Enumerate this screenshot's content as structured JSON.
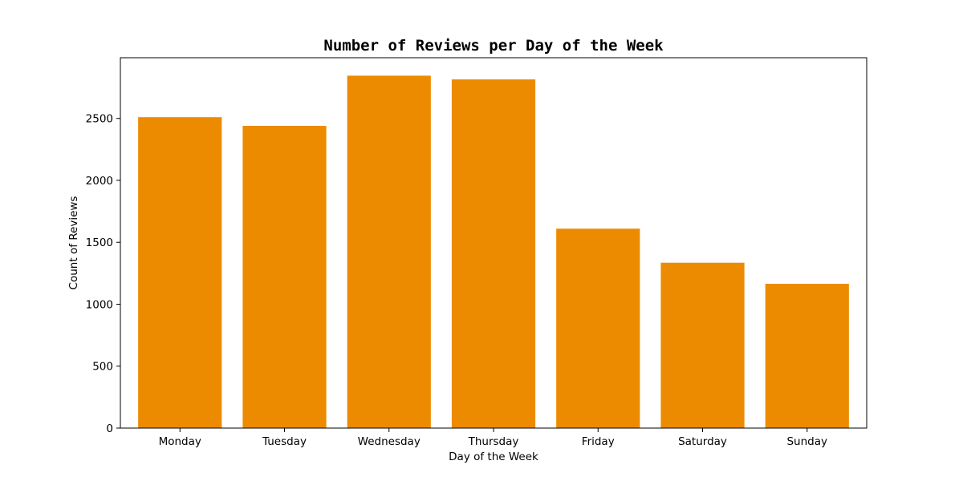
{
  "chart_data": {
    "type": "bar",
    "title": "Number of Reviews per Day of the Week",
    "xlabel": "Day of the Week",
    "ylabel": "Count of Reviews",
    "categories": [
      "Monday",
      "Tuesday",
      "Wednesday",
      "Thursday",
      "Friday",
      "Saturday",
      "Sunday"
    ],
    "values": [
      2510,
      2440,
      2845,
      2815,
      1610,
      1335,
      1165
    ],
    "ylim": [
      0,
      2990
    ],
    "yticks": [
      0,
      500,
      1000,
      1500,
      2000,
      2500
    ],
    "bar_color": "#ed8b00",
    "grid": false,
    "legend": "none"
  }
}
